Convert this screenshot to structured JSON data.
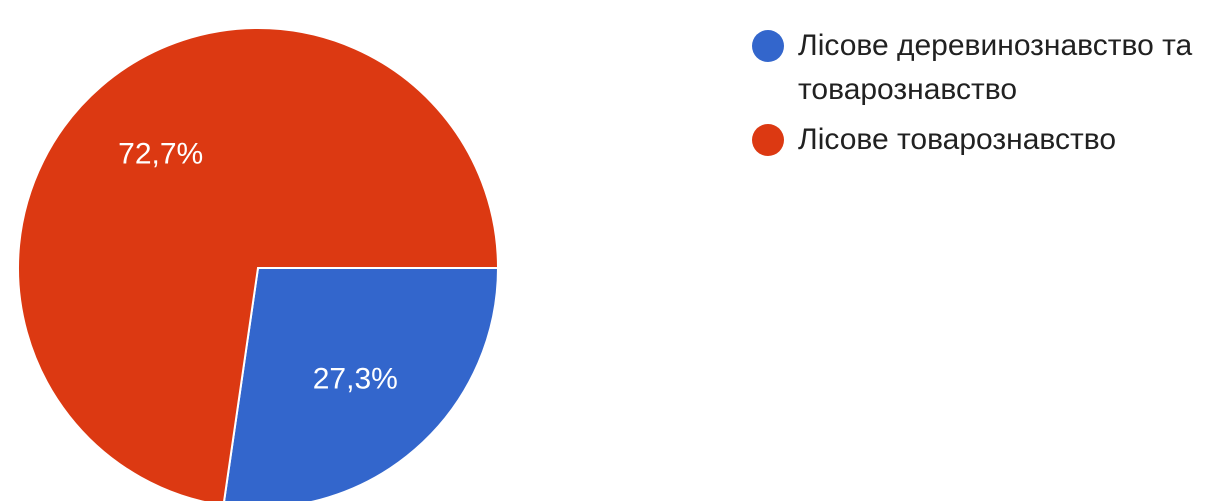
{
  "chart_data": {
    "type": "pie",
    "slices": [
      {
        "name": "Лісове деревинознавство та товарознавство",
        "value": 27.3,
        "label": "27,3%",
        "color": "#3366cc"
      },
      {
        "name": "Лісове товарознавство",
        "value": 72.7,
        "label": "72,7%",
        "color": "#dc3912"
      }
    ],
    "legend_position": "right"
  }
}
